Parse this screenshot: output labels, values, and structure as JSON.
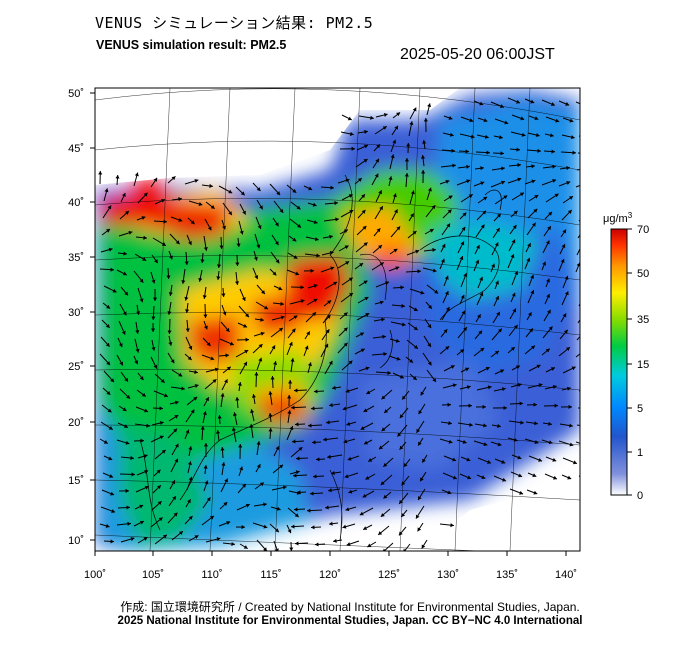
{
  "header": {
    "title_jp": "VENUS シミュレーション結果: PM2.5",
    "title_en": "VENUS simulation result: PM2.5",
    "timestamp": "2025-05-20 06:00JST"
  },
  "map": {
    "type": "concentration-map",
    "variable": "PM2.5",
    "lon_ticks": [
      "100˚",
      "105˚",
      "110˚",
      "115˚",
      "120˚",
      "125˚",
      "130˚",
      "135˚",
      "140˚"
    ],
    "lat_ticks": [
      "50˚",
      "45˚",
      "40˚",
      "35˚",
      "30˚",
      "25˚",
      "20˚",
      "15˚",
      "10˚"
    ],
    "overlay": "wind vectors (arrows)",
    "hotspots": [
      {
        "region": "Northwest China (Gansu)",
        "level": "70+"
      },
      {
        "region": "North China Plain",
        "level": "70+"
      },
      {
        "region": "Sichuan Basin",
        "level": "50-70"
      },
      {
        "region": "Central-East China",
        "level": "50-70"
      },
      {
        "region": "South China coast",
        "level": "50-70"
      },
      {
        "region": "Korean Peninsula west",
        "level": "50"
      }
    ]
  },
  "colorbar": {
    "unit": "μg/m",
    "unit_sup": "3",
    "labels": [
      "70",
      "50",
      "35",
      "15",
      "5",
      "1",
      "0"
    ],
    "colors": [
      "#ff00ff",
      "#dd0000",
      "#ff5500",
      "#ffaa00",
      "#ffee00",
      "#99dd00",
      "#00cc66",
      "#00bbdd",
      "#0088ff",
      "#0044cc",
      "#6677dd",
      "#ffffff"
    ]
  },
  "footer": {
    "credit": "作成: 国立環境研究所 / Created by National Institute for Environmental Studies, Japan.",
    "copyright": "2025 National Institute for Environmental Studies, Japan. CC BY−NC 4.0 International"
  }
}
